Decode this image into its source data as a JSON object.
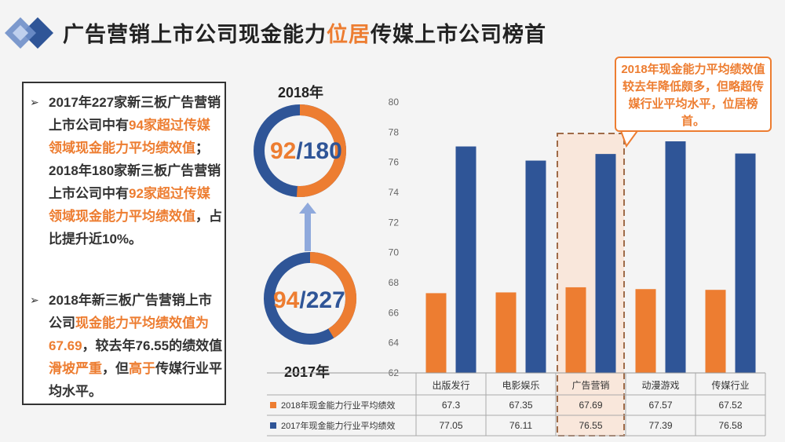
{
  "page": {
    "title_prefix": "广告营销上市公司现金能力",
    "title_highlight": "位居",
    "title_suffix": "传媒上市公司榜首"
  },
  "textbox": {
    "p1": [
      {
        "t": "2017年227家新三板广告营销上市公司中有",
        "hl": false
      },
      {
        "t": "94家超过传媒领域现金能力平均绩效值",
        "hl": true
      },
      {
        "t": "；2018年180家新三板广告营销上市公司中有",
        "hl": false
      },
      {
        "t": "92家超过传媒领域现金能力平均绩效值",
        "hl": true
      },
      {
        "t": "，占比提升近10%。",
        "hl": false
      }
    ],
    "p2": [
      {
        "t": "2018年新三板广告营销上市公司",
        "hl": false
      },
      {
        "t": "现金能力平均绩效值为67.69",
        "hl": true
      },
      {
        "t": "，较去年76.55的绩效值",
        "hl": false
      },
      {
        "t": "滑坡严重",
        "hl": true
      },
      {
        "t": "，但",
        "hl": false
      },
      {
        "t": "高于",
        "hl": true
      },
      {
        "t": "传媒行业平均水平。",
        "hl": false
      }
    ],
    "bullet": "➢"
  },
  "donuts": {
    "y2018": {
      "year": "2018年",
      "num": "92",
      "den": "/180",
      "fraction": 0.511
    },
    "y2017": {
      "year": "2017年",
      "num": "94",
      "den": "/227",
      "fraction": 0.414
    }
  },
  "callout": "2018年现金能力平均绩效值较去年降低颇多，但略超传媒行业平均水平，位居榜首。",
  "colors": {
    "orange": "#ED7D31",
    "blue": "#2F5597",
    "dark": "#222222"
  },
  "chart_data": {
    "type": "bar",
    "categories": [
      "出版发行",
      "电影娱乐",
      "广告营销",
      "动漫游戏",
      "传媒行业"
    ],
    "series": [
      {
        "name": "2018年现金能力行业平均绩效",
        "values": [
          67.3,
          67.35,
          67.69,
          67.57,
          67.52
        ],
        "labels": [
          "67.3",
          "67.35",
          "67.69",
          "67.57",
          "67.52"
        ],
        "color": "#ED7D31"
      },
      {
        "name": "2017年现金能力行业平均绩效",
        "values": [
          77.05,
          76.11,
          76.55,
          77.39,
          76.58
        ],
        "labels": [
          "77.05",
          "76.11",
          "76.55",
          "77.39",
          "76.58"
        ],
        "color": "#2F5597"
      }
    ],
    "ylim": [
      62,
      80
    ],
    "yticks": [
      "62",
      "64",
      "66",
      "68",
      "70",
      "72",
      "74",
      "76",
      "78",
      "80"
    ],
    "highlight_category": "广告营销",
    "grid": false
  }
}
